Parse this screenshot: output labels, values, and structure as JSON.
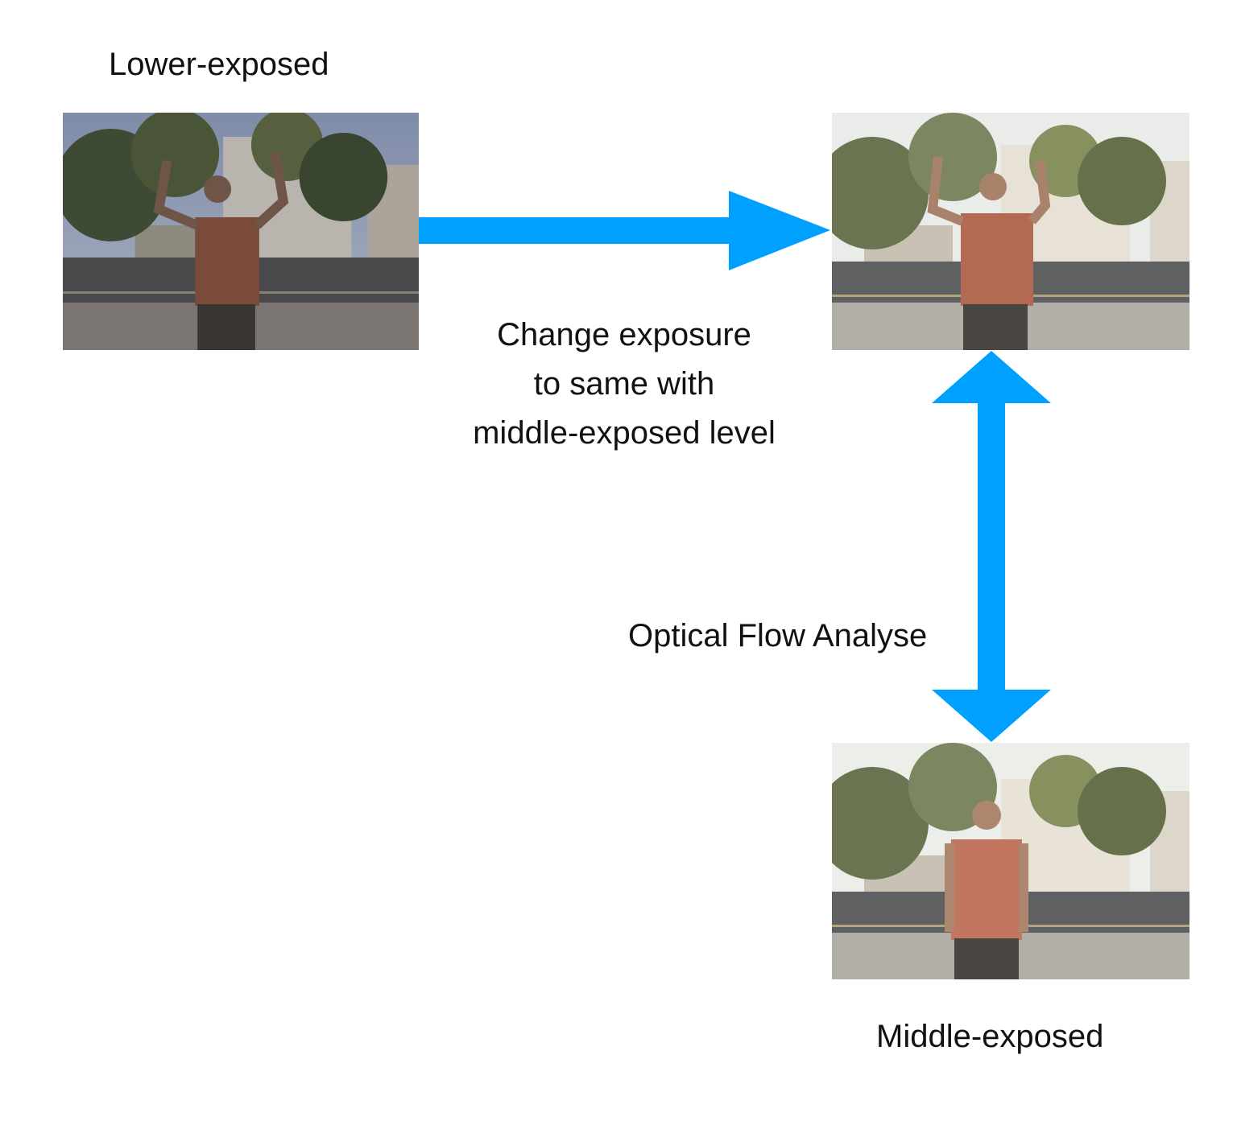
{
  "labels": {
    "lower_exposed": "Lower-exposed",
    "middle_exposed": "Middle-exposed",
    "change_exposure": [
      "Change exposure",
      "to same with",
      "middle-exposed level"
    ],
    "optical_flow": "Optical Flow Analyse"
  },
  "colors": {
    "arrow": "#00a0ff",
    "background": "#ffffff"
  },
  "photos": {
    "lower": {
      "exposure": "low",
      "pose": "arms-raised"
    },
    "adjusted": {
      "exposure": "middle",
      "pose": "arms-raised"
    },
    "middle": {
      "exposure": "middle",
      "pose": "arms-down"
    }
  }
}
